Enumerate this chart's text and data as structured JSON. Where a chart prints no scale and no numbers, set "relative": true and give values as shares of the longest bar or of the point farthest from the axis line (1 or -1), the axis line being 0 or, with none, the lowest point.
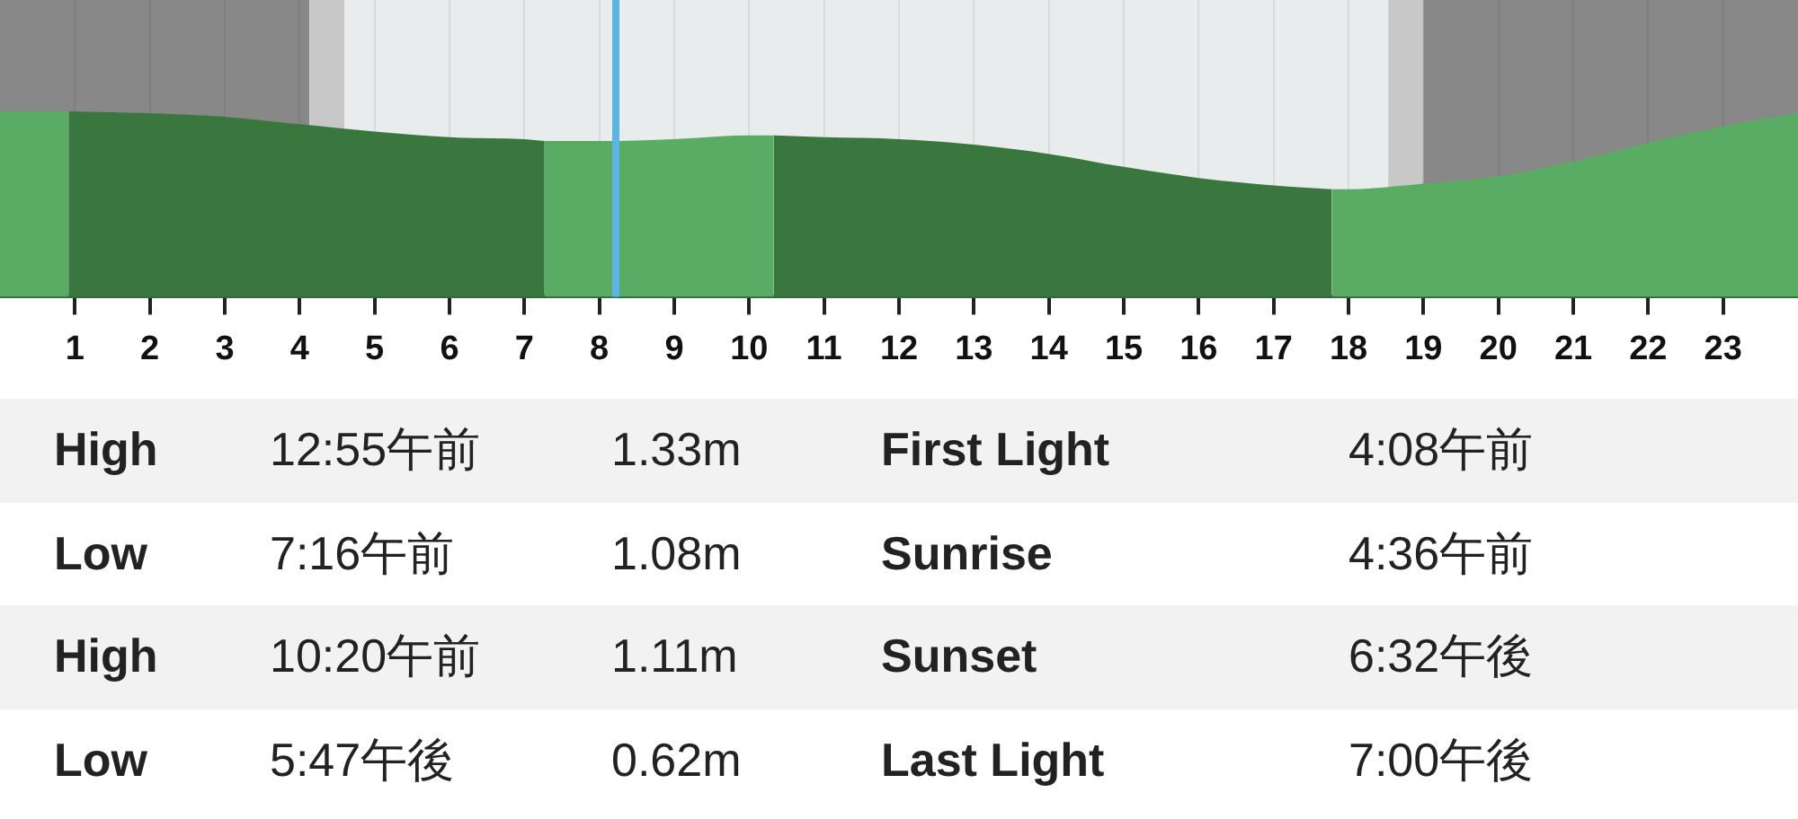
{
  "chart_data": {
    "type": "area",
    "relative": true,
    "series": [
      {
        "color": "#5aab63",
        "x": [
          0,
          0.92
        ],
        "values": [
          1.0,
          1.0
        ]
      },
      {
        "color": "#3a773f",
        "x": [
          0.92,
          2,
          3,
          4,
          5,
          6,
          7,
          7.27
        ],
        "values": [
          1.0,
          0.99,
          0.97,
          0.93,
          0.89,
          0.86,
          0.85,
          0.84
        ]
      },
      {
        "color": "#5aab63",
        "x": [
          7.27,
          8,
          9,
          10,
          10.33
        ],
        "values": [
          0.84,
          0.84,
          0.85,
          0.87,
          0.87
        ]
      },
      {
        "color": "#3a773f",
        "x": [
          10.33,
          11,
          12,
          13,
          14,
          15,
          16,
          17,
          17.78
        ],
        "values": [
          0.87,
          0.86,
          0.85,
          0.82,
          0.77,
          0.7,
          0.64,
          0.6,
          0.58
        ]
      },
      {
        "color": "#5aab63",
        "x": [
          17.78,
          18,
          19,
          20,
          21,
          22,
          23,
          24
        ],
        "values": [
          0.58,
          0.58,
          0.61,
          0.65,
          0.73,
          0.83,
          0.92,
          0.99
        ]
      }
    ],
    "xlim": [
      0,
      24
    ],
    "xticks": [
      1,
      2,
      3,
      4,
      5,
      6,
      7,
      8,
      9,
      10,
      11,
      12,
      13,
      14,
      15,
      16,
      17,
      18,
      19,
      20,
      21,
      22,
      23
    ],
    "grid": "x",
    "legend": false,
    "marker": "none",
    "bands": [
      {
        "axis": "x",
        "from": 0,
        "to": 4.13,
        "color": "#888888"
      },
      {
        "axis": "x",
        "from": 4.13,
        "to": 4.6,
        "color": "#c8c8c8"
      },
      {
        "axis": "x",
        "from": 4.6,
        "to": 18.53,
        "color": "#e9eced"
      },
      {
        "axis": "x",
        "from": 18.53,
        "to": 19,
        "color": "#c8c8c8"
      },
      {
        "axis": "x",
        "from": 19,
        "to": 24,
        "color": "#888888"
      }
    ],
    "ref_lines": [
      {
        "axis": "x",
        "value": 8.22,
        "color": "#5ab4e5"
      }
    ],
    "annotations": [
      "High",
      "12:55午前",
      "1.33m",
      "First Light",
      "4:08午前",
      "Low",
      "7:16午前",
      "1.08m",
      "Sunrise",
      "4:36午前",
      "High",
      "10:20午前",
      "1.11m",
      "Sunset",
      "6:32午後",
      "Low",
      "5:47午後",
      "0.62m",
      "Last Light",
      "7:00午後"
    ]
  }
}
